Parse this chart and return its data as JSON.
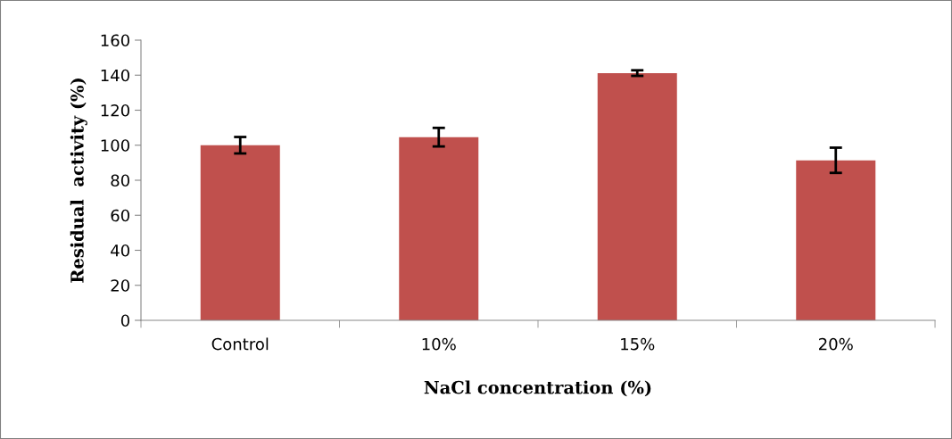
{
  "chart_data": {
    "type": "bar",
    "xlabel": "NaCl concentration (%)",
    "ylabel": "Residual  activity (%)",
    "categories": [
      "Control",
      "10%",
      "15%",
      "20%"
    ],
    "values": [
      100,
      104.6,
      141.2,
      91.4
    ],
    "errors": [
      4.7,
      5.3,
      1.6,
      7.2
    ],
    "color": "#c0504d",
    "ylim": [
      0,
      160
    ],
    "yticks": [
      0,
      20,
      40,
      60,
      80,
      100,
      120,
      140,
      160
    ],
    "grid": false
  }
}
